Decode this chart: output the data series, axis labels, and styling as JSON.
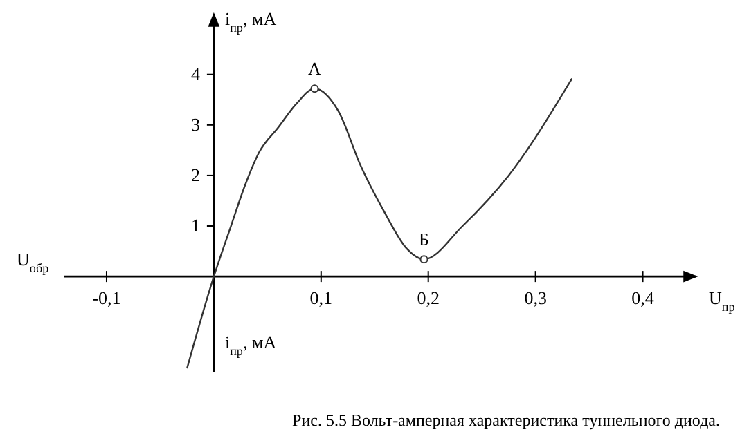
{
  "chart_data": {
    "type": "line",
    "xlabel": "U$_{пр}$",
    "ylabel": "i$_{пр}$, мА",
    "xlim": [
      -0.14,
      0.45
    ],
    "ylim": [
      -1.9,
      5.2
    ],
    "xticks": [
      {
        "value": -0.1,
        "label": "-0,1"
      },
      {
        "value": 0.1,
        "label": "0,1"
      },
      {
        "value": 0.2,
        "label": "0,2"
      },
      {
        "value": 0.3,
        "label": "0,3"
      },
      {
        "value": 0.4,
        "label": "0,4"
      }
    ],
    "yticks": [
      1,
      2,
      3,
      4
    ],
    "grid": false,
    "series": [
      {
        "color": "#333333",
        "marker": "none",
        "x": [
          -0.025,
          0,
          0.016,
          0.029,
          0.042,
          0.06,
          0.077,
          0.094,
          0.116,
          0.137,
          0.159,
          0.18,
          0.196,
          0.232,
          0.275,
          0.334
        ],
        "values": [
          -1.82,
          0,
          1.0,
          1.8,
          2.45,
          2.95,
          3.42,
          3.72,
          3.28,
          2.19,
          1.28,
          0.55,
          0.34,
          1.0,
          2.0,
          3.92
        ]
      },
      {
        "type": "scatter",
        "color": "#333333",
        "marker": "circle",
        "x": [
          0.094,
          0.196
        ],
        "values": [
          3.72,
          0.34
        ]
      }
    ],
    "annotations": [
      {
        "text": "А",
        "x": 0.094,
        "y": 3.72
      },
      {
        "text": "Б",
        "x": 0.196,
        "y": 0.34
      },
      "U$_{обр}$",
      "i$_{пр}$, мА",
      "Рис. 5.5  Вольт-амперная характеристика туннельного диода."
    ]
  }
}
